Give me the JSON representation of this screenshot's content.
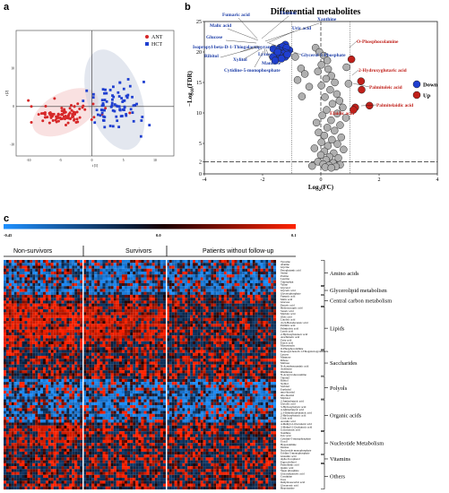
{
  "panels": {
    "a": "a",
    "b": "b",
    "c": "c"
  },
  "chart_data": [
    {
      "id": "pca",
      "type": "scatter",
      "xlabel": "t [1]",
      "ylabel": "t [2]",
      "x_ticks": [
        "-10",
        "-5",
        "0",
        "5",
        "10"
      ],
      "y_ticks": [
        "-10",
        "0",
        "10"
      ],
      "xlim": [
        -12,
        13
      ],
      "ylim": [
        -13,
        20
      ],
      "legend": "top-right",
      "series": [
        {
          "name": "ANT",
          "color": "#d62728",
          "center": [
            -4.5,
            -2.2
          ],
          "spread": [
            2.7,
            1.3
          ],
          "n": 95
        },
        {
          "name": "HCT",
          "color": "#1f3fd0",
          "center": [
            3.8,
            0.2
          ],
          "spread": [
            2.3,
            3.4
          ],
          "n": 85
        }
      ]
    },
    {
      "id": "volcano",
      "type": "scatter",
      "title": "Differential metabolites",
      "xlabel": "Log2(FC)",
      "ylabel": "-Log10(FDR)",
      "x_ticks": [
        -4,
        -2,
        0,
        2,
        4
      ],
      "y_ticks": [
        0,
        2,
        5,
        10,
        15,
        20,
        25
      ],
      "xlim": [
        -4,
        4
      ],
      "ylim": [
        0,
        25
      ],
      "thresholds": {
        "fc_left": -1,
        "fc_right": 1,
        "fdr_line": 2
      },
      "legend": "right",
      "series": [
        {
          "name": "Down",
          "color": "#1f3fd0",
          "points": [
            [
              -1.3,
              20.2
            ],
            [
              -1.42,
              19.5
            ],
            [
              -1.52,
              19.6
            ],
            [
              -1.08,
              20.3
            ],
            [
              -1.63,
              20.5
            ],
            [
              -1.22,
              19.2
            ],
            [
              -1.55,
              18.7
            ],
            [
              -1.22,
              21.2
            ],
            [
              -1.15,
              19.6
            ],
            [
              -1.4,
              20.7
            ],
            [
              -1.64,
              19.2
            ],
            [
              -1.31,
              20.9
            ],
            [
              -1.48,
              20.0
            ],
            [
              -1.35,
              18.9
            ],
            [
              -1.18,
              20.7
            ],
            [
              -1.57,
              18.6
            ]
          ]
        },
        {
          "name": "Up",
          "color": "#c0201a",
          "points": [
            [
              1.05,
              18.8
            ],
            [
              1.38,
              15.2
            ],
            [
              1.4,
              13.8
            ],
            [
              1.18,
              10.9
            ],
            [
              1.12,
              10.5
            ],
            [
              1.67,
              11.2
            ]
          ]
        },
        {
          "name": "",
          "color": "#b0b0b0",
          "points": [
            [
              -0.18,
              20.7
            ],
            [
              -0.05,
              20.0
            ],
            [
              0.1,
              19.4
            ],
            [
              0.22,
              18.6
            ],
            [
              0.02,
              17.9
            ],
            [
              0.25,
              17.2
            ],
            [
              -0.1,
              16.8
            ],
            [
              0.36,
              16.1
            ],
            [
              0.18,
              15.6
            ],
            [
              0.48,
              15.0
            ],
            [
              0.02,
              14.5
            ],
            [
              0.32,
              13.8
            ],
            [
              0.55,
              13.1
            ],
            [
              0.14,
              12.6
            ],
            [
              0.64,
              12.0
            ],
            [
              0.4,
              11.5
            ],
            [
              0.75,
              10.9
            ],
            [
              0.2,
              10.5
            ],
            [
              0.56,
              9.9
            ],
            [
              0.05,
              9.6
            ],
            [
              0.86,
              9.2
            ],
            [
              0.35,
              8.8
            ],
            [
              -0.15,
              8.4
            ],
            [
              0.66,
              8.0
            ],
            [
              0.22,
              7.6
            ],
            [
              0.47,
              7.1
            ],
            [
              -0.08,
              6.8
            ],
            [
              0.12,
              6.3
            ],
            [
              0.7,
              6.0
            ],
            [
              0.38,
              5.6
            ],
            [
              0.02,
              5.2
            ],
            [
              0.57,
              4.9
            ],
            [
              0.24,
              4.6
            ],
            [
              -0.22,
              4.2
            ],
            [
              0.78,
              4.0
            ],
            [
              0.12,
              3.7
            ],
            [
              0.44,
              3.4
            ],
            [
              0.0,
              3.1
            ],
            [
              0.3,
              2.8
            ],
            [
              0.6,
              2.6
            ],
            [
              0.18,
              2.3
            ],
            [
              -0.1,
              2.0
            ],
            [
              0.42,
              1.8
            ],
            [
              0.08,
              1.6
            ],
            [
              0.66,
              1.5
            ],
            [
              0.28,
              1.4
            ],
            [
              -0.3,
              1.3
            ],
            [
              0.52,
              1.2
            ],
            [
              0.15,
              1.1
            ],
            [
              0.36,
              1.0
            ],
            [
              -0.68,
              17.3
            ],
            [
              -0.55,
              16.4
            ],
            [
              -0.8,
              15.4
            ],
            [
              -0.4,
              14.3
            ],
            [
              -0.65,
              12.7
            ],
            [
              0.88,
              17.5
            ],
            [
              0.95,
              14.8
            ],
            [
              -0.88,
              19.2
            ]
          ]
        }
      ],
      "labels": {
        "blue": [
          "Fumaric acid",
          "Threitol",
          "Xanthine",
          "Malic acid",
          "Uric acid",
          "Glucose",
          "Isopropyl-beta-D-1-Thiogalactopyranoside",
          "Ribitol",
          "Xylitol",
          "Lyxose",
          "Mannose",
          "Glycerol 3-Phosphate",
          "Cytidine-5-monophosphate"
        ],
        "red": [
          "O-Phosphocolamine",
          "2-Hydroxyglutaric acid",
          "Palmitoleic acid",
          "Elaidic acid",
          "Palmitelaidic acid"
        ]
      }
    },
    {
      "id": "heatmap",
      "type": "heatmap",
      "colorbar_ticks": [
        "-0.45",
        "0.0",
        "0.1"
      ],
      "groups": [
        "Non-survivors",
        "Survivors",
        "Patients without follow-up"
      ],
      "rows": [
        "Tyrosine",
        "Alanine",
        "Glycine",
        "Pyroglutamic acid",
        "Serine",
        "Proline",
        "Leucine",
        "Tryptophan",
        "Valine",
        "Glycerol",
        "Glyceric acid",
        "Glycerophosphate",
        "Fumaric acid",
        "Malic acid",
        "Glucose",
        "Pyruvic acid",
        "Hydroxycapric acid",
        "Stearic acid",
        "Myristic acid",
        "Oleic acid",
        "Linoleic acid",
        "cis-9-Hexadecenoic acid",
        "Palmitic acid",
        "Palmitoleic acid",
        "Lauric acid",
        "2-Hydroxybutanoic acid",
        "Arachidonic acid",
        "Fatty acid",
        "Erucic acid",
        "Monostearin",
        "O-Phosphocolamine",
        "Isopropyl-beta-D-1-Thiogalactopyranoside",
        "Lyxose",
        "Mannose",
        "Ribose",
        "Maltose",
        "N-Acetylneuraminic acid",
        "Arabinose",
        "Rhamnose",
        "N-Acetyl-Glucosamine",
        "Threitol",
        "Ribitol",
        "Xylitol",
        "Sorbitol",
        "Erythritol",
        "myo-Inositol",
        "allo-Inositol",
        "Myristol",
        "2-Aminobutyric acid",
        "Glycolic acid",
        "3-Hydroxybutyric acid",
        "4-Aminobutyric acid",
        "2,3-Dihydroxybutanoic acid",
        "2-Hydroxybutyric acid",
        "Citric acid",
        "Aconitic acid",
        "4-Methyl-2-Oxovaleric acid",
        "3-Methyl-2-Oxobutyric acid",
        "Galacturonic acid",
        "Xanthine",
        "Uric acid",
        "Cytidine-5-monophosphate",
        "Uracil",
        "Hypoxanthine",
        "Inosine",
        "Nucleoside monophosphate",
        "Uridine 5-monophosphate",
        "Glutamic acid",
        "alpha-Tocopherol",
        "Ergocalciferol",
        "Pantothenic acid",
        "Quinic acid",
        "Sugar phosphate",
        "Glucosylpyruvic acid",
        "Creatinine",
        "Urea",
        "Dehydroascorbic acid",
        "Glucuronic acid",
        "Hypotaurine"
      ],
      "categories": [
        {
          "name": "Amino acids",
          "start": 0,
          "end": 8
        },
        {
          "name": "Glycerolipid metabolism",
          "start": 9,
          "end": 11
        },
        {
          "name": "Central carbon metabolism",
          "start": 12,
          "end": 15
        },
        {
          "name": "Lipids",
          "start": 16,
          "end": 30
        },
        {
          "name": "Saccharides",
          "start": 31,
          "end": 39
        },
        {
          "name": "Polyols",
          "start": 40,
          "end": 47
        },
        {
          "name": "Organic acids",
          "start": 48,
          "end": 58
        },
        {
          "name": "Nucleotide Metabolism",
          "start": 59,
          "end": 66
        },
        {
          "name": "Vitamins",
          "start": 67,
          "end": 69
        },
        {
          "name": "Others",
          "start": 70,
          "end": 78
        }
      ],
      "group_columns": [
        30,
        30,
        42
      ]
    }
  ]
}
